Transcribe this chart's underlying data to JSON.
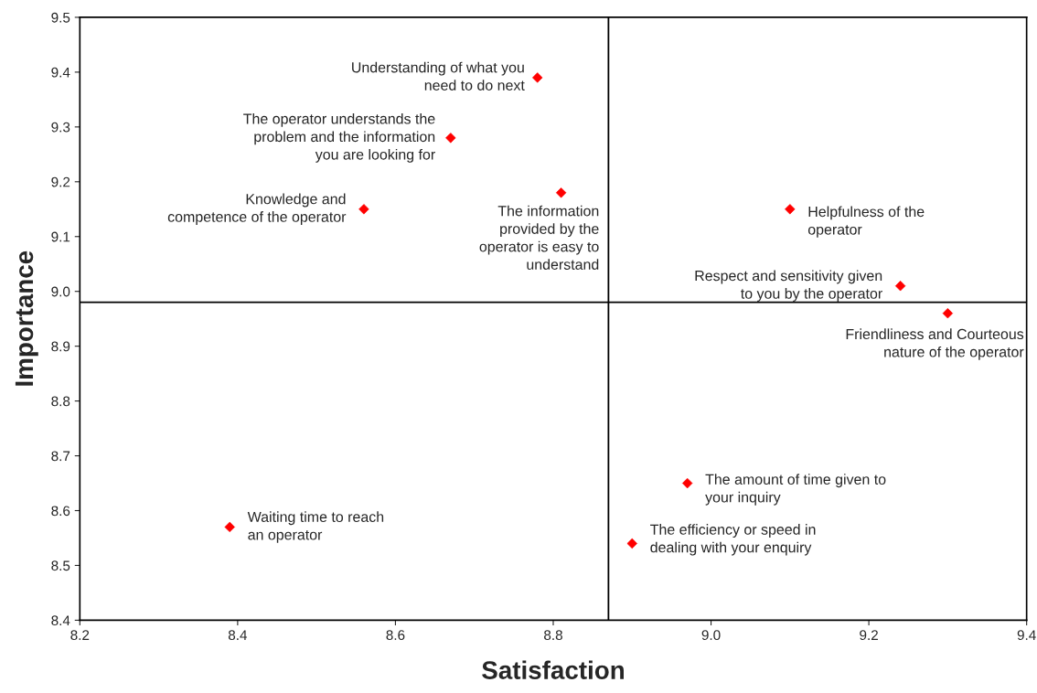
{
  "chart_data": {
    "type": "scatter",
    "xlabel": "Satisfaction",
    "ylabel": "Importance",
    "x": [
      8.78,
      8.67,
      8.81,
      8.56,
      9.1,
      9.24,
      9.3,
      8.97,
      8.9,
      8.39
    ],
    "values": [
      9.39,
      9.28,
      9.18,
      9.15,
      9.15,
      9.01,
      8.96,
      8.65,
      8.54,
      8.57
    ],
    "color": "#ff0000",
    "marker": "diamond",
    "grid": false,
    "legend": false,
    "xlim": [
      8.2,
      9.4
    ],
    "xticks": [
      8.2,
      8.4,
      8.6,
      8.8,
      {
        "value": 9.0,
        "label": "9.0"
      },
      9.2,
      9.4
    ],
    "ylim": [
      8.4,
      9.5
    ],
    "yticks": [
      8.4,
      8.5,
      8.6,
      8.7,
      8.8,
      8.9,
      {
        "value": 9.0,
        "label": "9.0"
      },
      9.1,
      9.2,
      9.3,
      9.4,
      9.5
    ],
    "ref_lines": [
      {
        "axis": "x",
        "value": 8.87,
        "color": "#000000"
      },
      {
        "axis": "y",
        "value": 8.98,
        "color": "#000000"
      }
    ],
    "annotations": [
      {
        "text": "Understanding of what you\nneed to do next",
        "x": 8.78,
        "y": 9.39
      },
      {
        "text": "The operator understands the\nproblem and the information\nyou are looking for",
        "x": 8.67,
        "y": 9.28
      },
      {
        "text": "The information\nprovided by the\noperator is easy to\nunderstand",
        "x": 8.81,
        "y": 9.18
      },
      {
        "text": "Knowledge and\ncompetence of the operator",
        "x": 8.56,
        "y": 9.15
      },
      {
        "text": "Helpfulness of the\noperator",
        "x": 9.1,
        "y": 9.15
      },
      {
        "text": "Respect and sensitivity given\nto you by the operator",
        "x": 9.24,
        "y": 9.01
      },
      {
        "text": "Friendliness and Courteous\nnature of the operator",
        "x": 9.3,
        "y": 8.96
      },
      {
        "text": "The amount of time given to\nyour inquiry",
        "x": 8.97,
        "y": 8.65
      },
      {
        "text": "The efficiency or speed in\ndealing with your enquiry",
        "x": 8.9,
        "y": 8.54
      },
      {
        "text": "Waiting time to reach\nan operator",
        "x": 8.39,
        "y": 8.57
      }
    ]
  }
}
